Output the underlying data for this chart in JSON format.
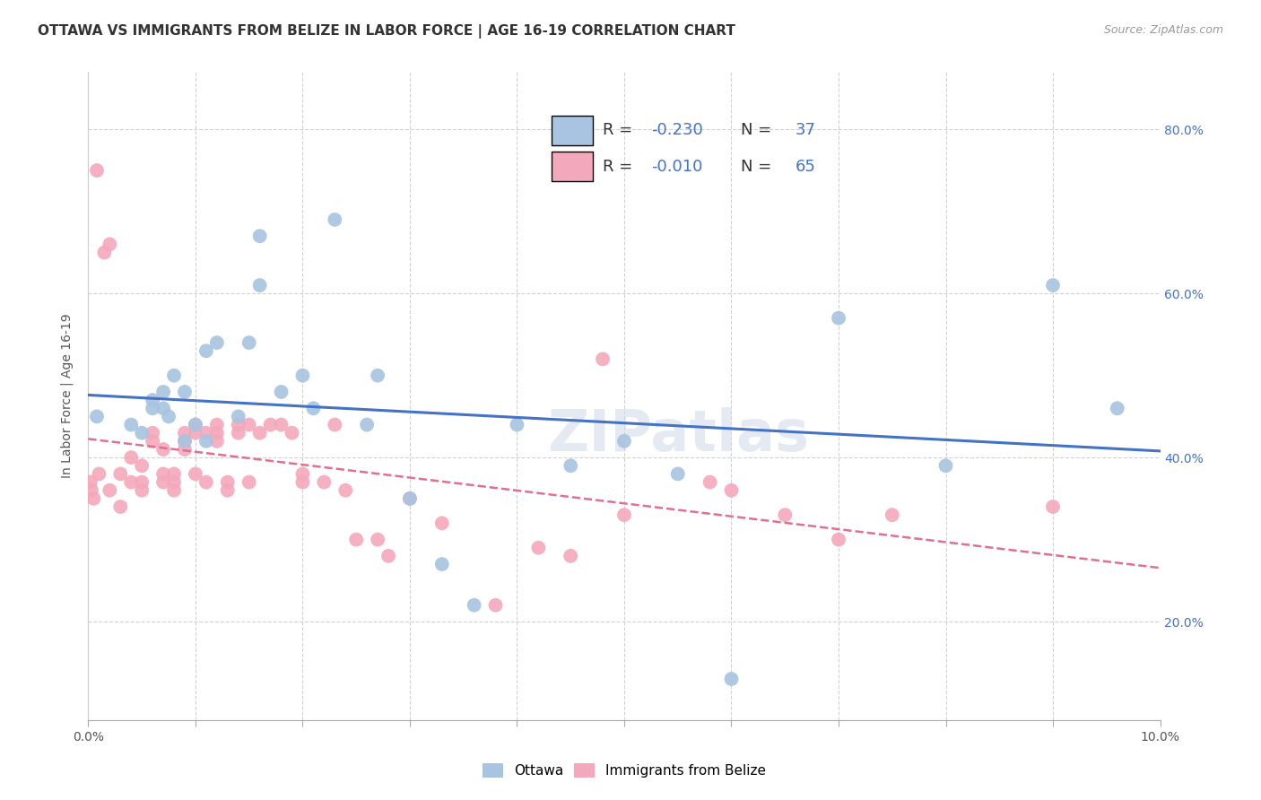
{
  "title": "OTTAWA VS IMMIGRANTS FROM BELIZE IN LABOR FORCE | AGE 16-19 CORRELATION CHART",
  "source": "Source: ZipAtlas.com",
  "ylabel": "In Labor Force | Age 16-19",
  "xlim": [
    0,
    0.1
  ],
  "ylim": [
    0.08,
    0.87
  ],
  "xticks": [
    0.0,
    0.01,
    0.02,
    0.03,
    0.04,
    0.05,
    0.06,
    0.07,
    0.08,
    0.09,
    0.1
  ],
  "yticks": [
    0.2,
    0.4,
    0.6,
    0.8
  ],
  "ottawa_R": -0.23,
  "ottawa_N": 37,
  "belize_R": -0.01,
  "belize_N": 65,
  "ottawa_color": "#a8c4e0",
  "belize_color": "#f4a8bb",
  "ottawa_line_color": "#4472c4",
  "belize_line_color": "#e07090",
  "background_color": "#ffffff",
  "grid_color": "#cccccc",
  "title_fontsize": 11,
  "axis_label_fontsize": 10,
  "tick_fontsize": 10,
  "legend_fontsize": 13,
  "watermark": "ZIPatlas",
  "ottawa_x": [
    0.0008,
    0.004,
    0.005,
    0.006,
    0.006,
    0.007,
    0.007,
    0.0075,
    0.008,
    0.009,
    0.009,
    0.01,
    0.011,
    0.011,
    0.012,
    0.014,
    0.015,
    0.016,
    0.016,
    0.018,
    0.02,
    0.021,
    0.023,
    0.026,
    0.027,
    0.03,
    0.033,
    0.036,
    0.04,
    0.045,
    0.05,
    0.055,
    0.06,
    0.07,
    0.08,
    0.09,
    0.096
  ],
  "ottawa_y": [
    0.45,
    0.44,
    0.43,
    0.47,
    0.46,
    0.48,
    0.46,
    0.45,
    0.5,
    0.48,
    0.42,
    0.44,
    0.42,
    0.53,
    0.54,
    0.45,
    0.54,
    0.61,
    0.67,
    0.48,
    0.5,
    0.46,
    0.69,
    0.44,
    0.5,
    0.35,
    0.27,
    0.22,
    0.44,
    0.39,
    0.42,
    0.38,
    0.13,
    0.57,
    0.39,
    0.61,
    0.46
  ],
  "belize_x": [
    0.0002,
    0.0003,
    0.0005,
    0.0008,
    0.001,
    0.0015,
    0.002,
    0.002,
    0.003,
    0.003,
    0.004,
    0.004,
    0.005,
    0.005,
    0.005,
    0.006,
    0.006,
    0.007,
    0.007,
    0.007,
    0.008,
    0.008,
    0.008,
    0.009,
    0.009,
    0.009,
    0.01,
    0.01,
    0.01,
    0.011,
    0.011,
    0.012,
    0.012,
    0.012,
    0.013,
    0.013,
    0.014,
    0.014,
    0.015,
    0.015,
    0.016,
    0.017,
    0.018,
    0.019,
    0.02,
    0.02,
    0.022,
    0.023,
    0.024,
    0.025,
    0.027,
    0.028,
    0.03,
    0.033,
    0.038,
    0.042,
    0.045,
    0.048,
    0.05,
    0.058,
    0.06,
    0.065,
    0.07,
    0.075,
    0.09
  ],
  "belize_y": [
    0.37,
    0.36,
    0.35,
    0.75,
    0.38,
    0.65,
    0.66,
    0.36,
    0.34,
    0.38,
    0.37,
    0.4,
    0.39,
    0.37,
    0.36,
    0.43,
    0.42,
    0.41,
    0.38,
    0.37,
    0.38,
    0.37,
    0.36,
    0.43,
    0.42,
    0.41,
    0.44,
    0.43,
    0.38,
    0.37,
    0.43,
    0.42,
    0.44,
    0.43,
    0.37,
    0.36,
    0.43,
    0.44,
    0.44,
    0.37,
    0.43,
    0.44,
    0.44,
    0.43,
    0.38,
    0.37,
    0.37,
    0.44,
    0.36,
    0.3,
    0.3,
    0.28,
    0.35,
    0.32,
    0.22,
    0.29,
    0.28,
    0.52,
    0.33,
    0.37,
    0.36,
    0.33,
    0.3,
    0.33,
    0.34
  ]
}
